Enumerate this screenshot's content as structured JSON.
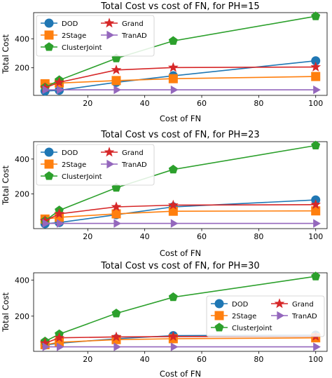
{
  "colors": {
    "DOD": "#1f77b4",
    "2Stage": "#ff7f0e",
    "ClusterJoint": "#2ca02c",
    "Grand": "#d62728",
    "TranAD": "#9467bd"
  },
  "chart_data": [
    {
      "type": "line",
      "title": "Total Cost vs cost of FN, for PH=15",
      "xlabel": "Cost of FN",
      "ylabel": "Total Cost",
      "x": [
        5,
        10,
        30,
        50,
        100
      ],
      "xlim": [
        1,
        104
      ],
      "ylim": [
        10,
        580
      ],
      "xticks": [
        20,
        40,
        60,
        80,
        100
      ],
      "yticks": [
        200,
        400
      ],
      "legend_position": "upper left",
      "grid": false,
      "series": [
        {
          "name": "DOD",
          "marker": "circle",
          "values": [
            40,
            45,
            100,
            145,
            248
          ]
        },
        {
          "name": "2Stage",
          "marker": "square",
          "values": [
            90,
            95,
            112,
            125,
            140
          ]
        },
        {
          "name": "ClusterJoint",
          "marker": "pentagon",
          "values": [
            65,
            115,
            265,
            385,
            555
          ]
        },
        {
          "name": "Grand",
          "marker": "star",
          "values": [
            62,
            100,
            185,
            202,
            205
          ]
        },
        {
          "name": "TranAD",
          "marker": "triangle-right",
          "values": [
            48,
            48,
            48,
            48,
            48
          ]
        }
      ]
    },
    {
      "type": "line",
      "title": "Total Cost vs cost of FN, for PH=23",
      "xlabel": "Cost of FN",
      "ylabel": "Total Cost",
      "x": [
        5,
        10,
        30,
        50,
        100
      ],
      "xlim": [
        1,
        104
      ],
      "ylim": [
        0,
        500
      ],
      "xticks": [
        20,
        40,
        60,
        80,
        100
      ],
      "yticks": [
        200,
        400
      ],
      "legend_position": "upper left",
      "grid": false,
      "series": [
        {
          "name": "DOD",
          "marker": "circle",
          "values": [
            28,
            35,
            80,
            125,
            165
          ]
        },
        {
          "name": "2Stage",
          "marker": "square",
          "values": [
            55,
            65,
            85,
            100,
            102
          ]
        },
        {
          "name": "ClusterJoint",
          "marker": "pentagon",
          "values": [
            45,
            105,
            235,
            340,
            478
          ]
        },
        {
          "name": "Grand",
          "marker": "star",
          "values": [
            45,
            85,
            125,
            135,
            138
          ]
        },
        {
          "name": "TranAD",
          "marker": "triangle-right",
          "values": [
            30,
            30,
            30,
            30,
            30
          ]
        }
      ]
    },
    {
      "type": "line",
      "title": "Total Cost vs cost of FN, for PH=30",
      "xlabel": "Cost of FN",
      "ylabel": "Total Cost",
      "x": [
        5,
        10,
        30,
        50,
        100
      ],
      "xlim": [
        1,
        104
      ],
      "ylim": [
        5,
        440
      ],
      "xticks": [
        20,
        40,
        60,
        80,
        100
      ],
      "yticks": [
        200,
        400
      ],
      "legend_position": "center right",
      "grid": false,
      "series": [
        {
          "name": "DOD",
          "marker": "circle",
          "values": [
            40,
            50,
            75,
            92,
            95
          ]
        },
        {
          "name": "2Stage",
          "marker": "square",
          "values": [
            42,
            55,
            70,
            75,
            80
          ]
        },
        {
          "name": "ClusterJoint",
          "marker": "pentagon",
          "values": [
            60,
            100,
            215,
            305,
            420
          ]
        },
        {
          "name": "Grand",
          "marker": "star",
          "values": [
            50,
            80,
            85,
            87,
            88
          ]
        },
        {
          "name": "TranAD",
          "marker": "triangle-right",
          "values": [
            30,
            30,
            30,
            30,
            30
          ]
        }
      ]
    }
  ]
}
